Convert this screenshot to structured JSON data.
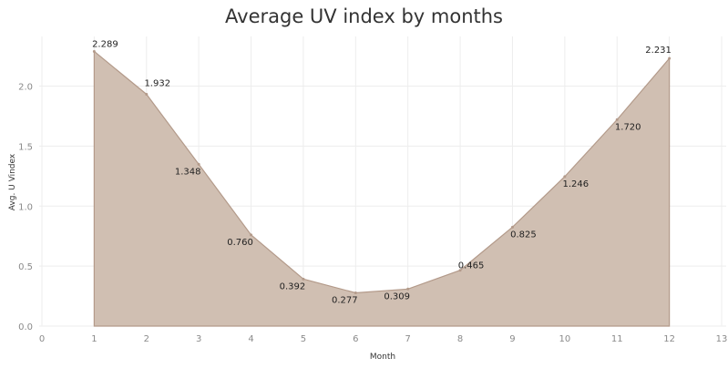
{
  "chart_data": {
    "type": "area",
    "title": "Average UV index by months",
    "xlabel": "Month",
    "ylabel": "Avg. U Vindex",
    "x": [
      1,
      2,
      3,
      4,
      5,
      6,
      7,
      8,
      9,
      10,
      11,
      12
    ],
    "values": [
      2.289,
      1.932,
      1.348,
      0.76,
      0.392,
      0.277,
      0.309,
      0.465,
      0.825,
      1.246,
      1.72,
      2.231
    ],
    "data_labels": [
      "2.289",
      "1.932",
      "1.348",
      "0.760",
      "0.392",
      "0.277",
      "0.309",
      "0.465",
      "0.825",
      "1.246",
      "1.720",
      "2.231"
    ],
    "xlim": [
      0,
      13
    ],
    "ylim": [
      0,
      2.3
    ],
    "x_ticks": [
      "0",
      "1",
      "2",
      "3",
      "4",
      "5",
      "6",
      "7",
      "8",
      "9",
      "10",
      "11",
      "12",
      "13"
    ],
    "y_ticks": [
      "0.0",
      "0.5",
      "1.0",
      "1.5",
      "2.0"
    ],
    "grid": true,
    "fill_color": "#d0bfb2",
    "line_color": "#b39a8a"
  }
}
